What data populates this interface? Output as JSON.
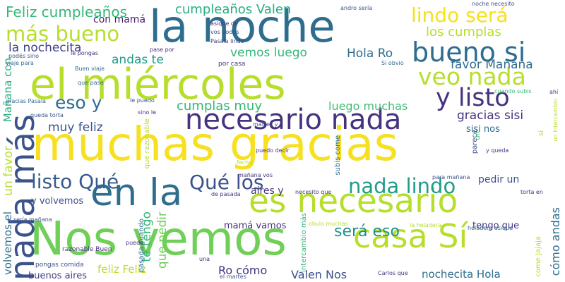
{
  "words": [
    {
      "text": "muchas gracias",
      "color": "#f6e01f",
      "orientation": "horizontal"
    },
    {
      "text": "Nos vemos",
      "color": "#6fcf57",
      "orientation": "horizontal"
    },
    {
      "text": "la noche",
      "color": "#2e6d8e",
      "orientation": "horizontal"
    },
    {
      "text": "el miércoles",
      "color": "#b6de2b",
      "orientation": "horizontal"
    },
    {
      "text": "en la",
      "color": "#2e6d8e",
      "orientation": "horizontal"
    },
    {
      "text": "casa Sí",
      "color": "#b6de2b",
      "orientation": "horizontal"
    },
    {
      "text": "es necesario",
      "color": "#b6de2b",
      "orientation": "horizontal"
    },
    {
      "text": "necesario nada",
      "color": "#46327e",
      "orientation": "horizontal"
    },
    {
      "text": "nada más",
      "color": "#3b528b",
      "orientation": "vertical"
    },
    {
      "text": "bueno si",
      "color": "#2e6d8e",
      "orientation": "horizontal"
    },
    {
      "text": "más bueno",
      "color": "#b6de2b",
      "orientation": "horizontal"
    },
    {
      "text": "veo nada",
      "color": "#b6de2b",
      "orientation": "horizontal"
    },
    {
      "text": "y listo",
      "color": "#46327e",
      "orientation": "horizontal"
    },
    {
      "text": "lindo será",
      "color": "#f6e01f",
      "orientation": "horizontal"
    },
    {
      "text": "listo Qué",
      "color": "#365c8d",
      "orientation": "horizontal"
    },
    {
      "text": "Qué los",
      "color": "#3b528b",
      "orientation": "horizontal"
    },
    {
      "text": "nada lindo",
      "color": "#1f9d8a",
      "orientation": "horizontal"
    },
    {
      "text": "eso y",
      "color": "#2e6d8e",
      "orientation": "horizontal"
    },
    {
      "text": "será eso",
      "color": "#21908d",
      "orientation": "horizontal"
    },
    {
      "text": "gracias sisi",
      "color": "#46327e",
      "orientation": "horizontal"
    },
    {
      "text": "Feliz cumpleaños",
      "color": "#35b779",
      "orientation": "horizontal"
    },
    {
      "text": "cumpleaños Valen",
      "color": "#27ad81",
      "orientation": "horizontal"
    },
    {
      "text": "los cumplas",
      "color": "#b6de2b",
      "orientation": "horizontal"
    },
    {
      "text": "cumplas muy",
      "color": "#35b779",
      "orientation": "horizontal"
    },
    {
      "text": "luego muchas",
      "color": "#3dbc74",
      "orientation": "horizontal"
    },
    {
      "text": "muy feliz",
      "color": "#3b528b",
      "orientation": "horizontal"
    },
    {
      "text": "andas te",
      "color": "#1f9d8a",
      "orientation": "horizontal"
    },
    {
      "text": "vemos luego",
      "color": "#35b779",
      "orientation": "horizontal"
    },
    {
      "text": "Hola Ro",
      "color": "#2e6d8e",
      "orientation": "horizontal"
    },
    {
      "text": "favor Mañana",
      "color": "#2e6d8e",
      "orientation": "horizontal"
    },
    {
      "text": "la nochecita",
      "color": "#424086",
      "orientation": "horizontal"
    },
    {
      "text": "con mamá",
      "color": "#481d6f",
      "orientation": "horizontal"
    },
    {
      "text": "sisi nos",
      "color": "#2e6d8e",
      "orientation": "horizontal"
    },
    {
      "text": "pedir un",
      "color": "#3b528b",
      "orientation": "horizontal"
    },
    {
      "text": "y volvemos",
      "color": "#3b528b",
      "orientation": "horizontal"
    },
    {
      "text": "mamá vamos",
      "color": "#46327e",
      "orientation": "horizontal"
    },
    {
      "text": "tengo que",
      "color": "#46327e",
      "orientation": "horizontal"
    },
    {
      "text": "feliz Feliz",
      "color": "#b6de2b",
      "orientation": "horizontal"
    },
    {
      "text": "Ro cómo",
      "color": "#46327e",
      "orientation": "horizontal"
    },
    {
      "text": "Valen Nos",
      "color": "#3b528b",
      "orientation": "horizontal"
    },
    {
      "text": "nochecita Hola",
      "color": "#2e6d8e",
      "orientation": "horizontal"
    },
    {
      "text": "aires y",
      "color": "#46327e",
      "orientation": "horizontal"
    },
    {
      "text": "buenos aires",
      "color": "#424086",
      "orientation": "horizontal"
    },
    {
      "text": "pongas comida",
      "color": "#3b528b",
      "orientation": "horizontal"
    },
    {
      "text": "razonable Buen",
      "color": "#46327e",
      "orientation": "horizontal"
    },
    {
      "text": "te tengo",
      "color": "#35b779",
      "orientation": "vertical"
    },
    {
      "text": "que pedir",
      "color": "#6ece58",
      "orientation": "vertical"
    },
    {
      "text": "Mañana con",
      "color": "#27ad81",
      "orientation": "vertical"
    },
    {
      "text": "un favor",
      "color": "#b6de2b",
      "orientation": "vertical"
    },
    {
      "text": "volvemos el",
      "color": "#2e6d8e",
      "orientation": "vertical"
    },
    {
      "text": "cómo andas",
      "color": "#2e6d8e",
      "orientation": "vertical"
    },
    {
      "text": "andro sería",
      "color": "#3b528b",
      "orientation": "horizontal"
    },
    {
      "text": "noche necesito",
      "color": "#3b528b",
      "orientation": "horizontal"
    },
    {
      "text": "asique de",
      "color": "#46327e",
      "orientation": "horizontal"
    },
    {
      "text": "vos podés",
      "color": "#3b528b",
      "orientation": "horizontal"
    },
    {
      "text": "Pasala lindo",
      "color": "#424086",
      "orientation": "horizontal"
    },
    {
      "text": "por casa",
      "color": "#46327e",
      "orientation": "horizontal"
    },
    {
      "text": "Si obvio",
      "color": "#2e6d8e",
      "orientation": "horizontal"
    },
    {
      "text": "Buen viaje",
      "color": "#2e6d8e",
      "orientation": "horizontal"
    },
    {
      "text": "que pase",
      "color": "#2e6d8e",
      "orientation": "horizontal"
    },
    {
      "text": "le pongas",
      "color": "#46327e",
      "orientation": "horizontal"
    },
    {
      "text": "podés sino",
      "color": "#3b528b",
      "orientation": "horizontal"
    },
    {
      "text": "viaje para",
      "color": "#2e6d8e",
      "orientation": "horizontal"
    },
    {
      "text": "pase por",
      "color": "#46327e",
      "orientation": "horizontal"
    },
    {
      "text": "cuando subis",
      "color": "#35b779",
      "orientation": "horizontal"
    },
    {
      "text": "gracias Pasala",
      "color": "#2e6d8e",
      "orientation": "horizontal"
    },
    {
      "text": "queda torta",
      "color": "#3b528b",
      "orientation": "horizontal"
    },
    {
      "text": "le puedo",
      "color": "#3b528b",
      "orientation": "horizontal"
    },
    {
      "text": "sino le",
      "color": "#46327e",
      "orientation": "horizontal"
    },
    {
      "text": "martes y",
      "color": "#3b528b",
      "orientation": "horizontal"
    },
    {
      "text": "puedo decir",
      "color": "#46327e",
      "orientation": "horizontal"
    },
    {
      "text": "y queda",
      "color": "#46327e",
      "orientation": "horizontal"
    },
    {
      "text": "para mañana",
      "color": "#3b528b",
      "orientation": "horizontal"
    },
    {
      "text": "mañana vos",
      "color": "#46327e",
      "orientation": "horizontal"
    },
    {
      "text": "necesito que",
      "color": "#46327e",
      "orientation": "horizontal"
    },
    {
      "text": "de pasada",
      "color": "#46327e",
      "orientation": "horizontal"
    },
    {
      "text": "torta en",
      "color": "#46327e",
      "orientation": "horizontal"
    },
    {
      "text": "sería mañana",
      "color": "#3b528b",
      "orientation": "horizontal"
    },
    {
      "text": "obvio muchas",
      "color": "#b6de2b",
      "orientation": "horizontal"
    },
    {
      "text": "la heladera",
      "color": "#b6de2b",
      "orientation": "horizontal"
    },
    {
      "text": "heladera asique",
      "color": "#2e6d8e",
      "orientation": "horizontal"
    },
    {
      "text": "el martes",
      "color": "#3b528b",
      "orientation": "horizontal"
    },
    {
      "text": "Carlos que",
      "color": "#46327e",
      "orientation": "horizontal"
    },
    {
      "text": "puede",
      "color": "#46327e",
      "orientation": "horizontal"
    },
    {
      "text": "una",
      "color": "#46327e",
      "orientation": "horizontal"
    },
    {
      "text": "ahí",
      "color": "#46327e",
      "orientation": "horizontal"
    },
    {
      "text": "fecha",
      "color": "#b6de2b",
      "orientation": "horizontal"
    },
    {
      "text": "un intercambio",
      "color": "#b6de2b",
      "orientation": "vertical"
    },
    {
      "text": "que razonable",
      "color": "#b6de2b",
      "orientation": "vertical"
    },
    {
      "text": "pasada cuando",
      "color": "#2e6d8e",
      "orientation": "vertical"
    },
    {
      "text": "subis come",
      "color": "#2e6d8e",
      "orientation": "vertical"
    },
    {
      "text": "parece",
      "color": "#3b528b",
      "orientation": "vertical"
    },
    {
      "text": "intercambio más",
      "color": "#35b779",
      "orientation": "vertical"
    },
    {
      "text": "come Jajaja",
      "color": "#b6de2b",
      "orientation": "vertical"
    },
    {
      "text": "un",
      "color": "#35b779",
      "orientation": "vertical"
    },
    {
      "text": "si",
      "color": "#b6de2b",
      "orientation": "vertical"
    }
  ]
}
